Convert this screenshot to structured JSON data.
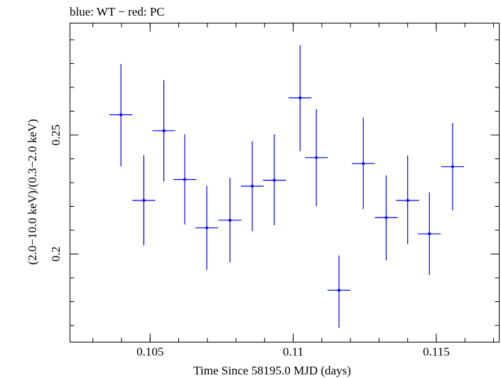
{
  "chart_data": {
    "type": "scatter",
    "title": "blue: WT − red: PC",
    "xlabel": "Time Since 58195.0 MJD (days)",
    "ylabel": "(2.0−10.0 keV)/(0.3−2.0 keV)",
    "xlim": [
      0.1022,
      0.1172
    ],
    "ylim": [
      0.163,
      0.297
    ],
    "x_ticks": [
      {
        "value": 0.105,
        "label": "0.105"
      },
      {
        "value": 0.11,
        "label": "0.11"
      },
      {
        "value": 0.115,
        "label": "0.115"
      }
    ],
    "y_ticks": [
      {
        "value": 0.2,
        "label": "0.2"
      },
      {
        "value": 0.25,
        "label": "0.25"
      }
    ],
    "x_minor_step": 0.001,
    "y_minor_step": 0.01,
    "grid": false,
    "series": [
      {
        "color": "#0000ee",
        "points": [
          {
            "x": 0.10398,
            "y": 0.2585,
            "xerr": 0.0004,
            "yerr_low": 0.0217,
            "yerr_high": 0.0213
          },
          {
            "x": 0.10478,
            "y": 0.2225,
            "xerr": 0.0004,
            "yerr_low": 0.0189,
            "yerr_high": 0.019
          },
          {
            "x": 0.10548,
            "y": 0.2518,
            "xerr": 0.0004,
            "yerr_low": 0.0213,
            "yerr_high": 0.0213
          },
          {
            "x": 0.10621,
            "y": 0.2313,
            "xerr": 0.0004,
            "yerr_low": 0.0189,
            "yerr_high": 0.019
          },
          {
            "x": 0.10698,
            "y": 0.211,
            "xerr": 0.0004,
            "yerr_low": 0.0177,
            "yerr_high": 0.0177
          },
          {
            "x": 0.10779,
            "y": 0.2142,
            "xerr": 0.0004,
            "yerr_low": 0.0177,
            "yerr_high": 0.0178
          },
          {
            "x": 0.10857,
            "y": 0.2285,
            "xerr": 0.0004,
            "yerr_low": 0.0189,
            "yerr_high": 0.0189
          },
          {
            "x": 0.10934,
            "y": 0.231,
            "xerr": 0.0004,
            "yerr_low": 0.0189,
            "yerr_high": 0.0193
          },
          {
            "x": 0.11024,
            "y": 0.2656,
            "xerr": 0.0004,
            "yerr_low": 0.0224,
            "yerr_high": 0.0221
          },
          {
            "x": 0.11081,
            "y": 0.2405,
            "xerr": 0.0004,
            "yerr_low": 0.0204,
            "yerr_high": 0.0204
          },
          {
            "x": 0.1116,
            "y": 0.1848,
            "xerr": 0.0004,
            "yerr_low": 0.0158,
            "yerr_high": 0.0146
          },
          {
            "x": 0.11245,
            "y": 0.238,
            "xerr": 0.0004,
            "yerr_low": 0.0191,
            "yerr_high": 0.0193
          },
          {
            "x": 0.11325,
            "y": 0.2153,
            "xerr": 0.0004,
            "yerr_low": 0.018,
            "yerr_high": 0.0177
          },
          {
            "x": 0.114,
            "y": 0.2225,
            "xerr": 0.0004,
            "yerr_low": 0.0183,
            "yerr_high": 0.0189
          },
          {
            "x": 0.11476,
            "y": 0.2085,
            "xerr": 0.0004,
            "yerr_low": 0.0173,
            "yerr_high": 0.0174
          },
          {
            "x": 0.11557,
            "y": 0.2367,
            "xerr": 0.0004,
            "yerr_low": 0.0183,
            "yerr_high": 0.0183
          }
        ]
      }
    ]
  }
}
